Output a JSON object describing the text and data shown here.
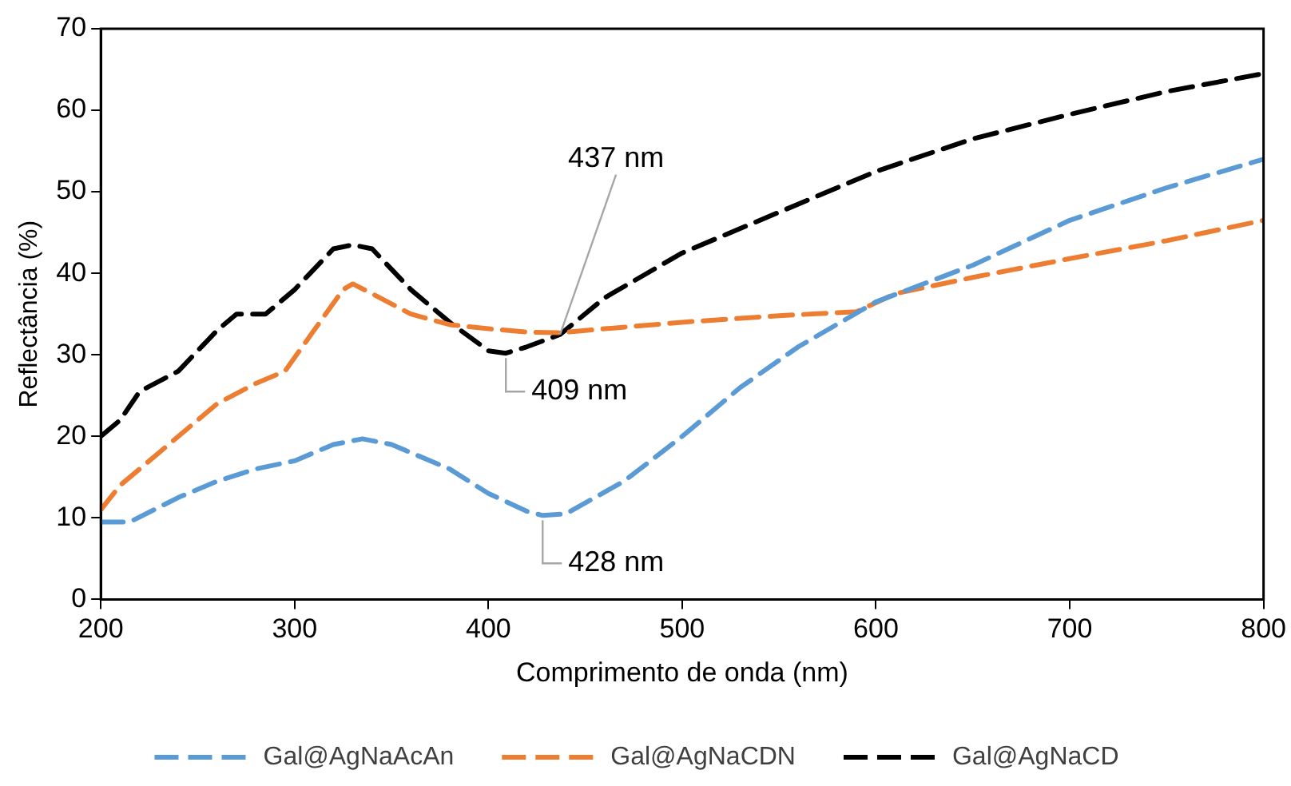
{
  "chart_data": {
    "type": "line",
    "xlabel": "Comprimento de onda (nm)",
    "ylabel": "Reflectância (%)",
    "xlim": [
      200,
      800
    ],
    "xticks": [
      200,
      300,
      400,
      500,
      600,
      700,
      800
    ],
    "ylim": [
      0,
      70
    ],
    "yticks": [
      0,
      10,
      20,
      30,
      40,
      50,
      60,
      70
    ],
    "grid": false,
    "legend": "bottom",
    "marker": "none",
    "line_style": "dashed",
    "series": [
      {
        "name": "Gal@AgNaAcAn",
        "color": "#5b9bd5",
        "x": [
          200,
          215,
          240,
          260,
          280,
          300,
          320,
          335,
          350,
          380,
          400,
          420,
          428,
          440,
          470,
          500,
          530,
          560,
          600,
          650,
          700,
          750,
          800
        ],
        "values": [
          9.5,
          9.5,
          12.5,
          14.5,
          16,
          17,
          19,
          19.7,
          19,
          16,
          13,
          10.8,
          10.3,
          10.5,
          14.5,
          20,
          26,
          31,
          36.5,
          41,
          46.5,
          50.5,
          54
        ]
      },
      {
        "name": "Gal@AgNaCDN",
        "color": "#ed7d31",
        "x": [
          200,
          210,
          230,
          260,
          280,
          295,
          310,
          325,
          330,
          340,
          360,
          380,
          400,
          420,
          437,
          460,
          500,
          550,
          590,
          610,
          650,
          700,
          750,
          800
        ],
        "values": [
          11,
          14,
          18,
          24,
          26.5,
          28,
          33,
          38,
          38.7,
          37.5,
          35,
          33.7,
          33.2,
          32.8,
          32.7,
          33.2,
          34,
          34.8,
          35.3,
          37.5,
          39.5,
          41.8,
          44,
          46.5
        ]
      },
      {
        "name": "Gal@AgNaCD",
        "color": "#000000",
        "x": [
          200,
          210,
          220,
          240,
          260,
          270,
          285,
          300,
          320,
          330,
          340,
          360,
          380,
          400,
          409,
          420,
          437,
          460,
          500,
          550,
          600,
          650,
          700,
          750,
          800
        ],
        "values": [
          20,
          22,
          25.5,
          28,
          33,
          35,
          35,
          38,
          43,
          43.5,
          43,
          38,
          34,
          30.5,
          30.2,
          31,
          32.5,
          37,
          42.5,
          47.5,
          52.5,
          56.5,
          59.5,
          62.3,
          64.5
        ]
      }
    ],
    "annotations": [
      {
        "text": "437 nm",
        "x": 437,
        "y": 32.5
      },
      {
        "text": "409 nm",
        "x": 409,
        "y": 30.2
      },
      {
        "text": "428 nm",
        "x": 428,
        "y": 10.3
      }
    ]
  }
}
